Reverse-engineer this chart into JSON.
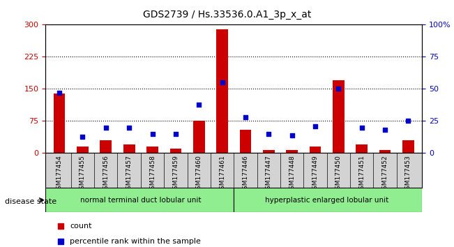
{
  "title": "GDS2739 / Hs.33536.0.A1_3p_x_at",
  "samples": [
    "GSM177454",
    "GSM177455",
    "GSM177456",
    "GSM177457",
    "GSM177458",
    "GSM177459",
    "GSM177460",
    "GSM177461",
    "GSM177446",
    "GSM177447",
    "GSM177448",
    "GSM177449",
    "GSM177450",
    "GSM177451",
    "GSM177452",
    "GSM177453"
  ],
  "counts": [
    140,
    15,
    30,
    20,
    15,
    10,
    75,
    290,
    55,
    8,
    8,
    15,
    170,
    20,
    8,
    30
  ],
  "percentiles": [
    47,
    13,
    20,
    20,
    15,
    15,
    38,
    55,
    28,
    15,
    14,
    21,
    50,
    20,
    18,
    25
  ],
  "group1_label": "normal terminal duct lobular unit",
  "group2_label": "hyperplastic enlarged lobular unit",
  "group1_count": 8,
  "group2_count": 8,
  "bar_color": "#cc0000",
  "dot_color": "#0000cc",
  "ylim_left": [
    0,
    300
  ],
  "ylim_right": [
    0,
    100
  ],
  "yticks_left": [
    0,
    75,
    150,
    225,
    300
  ],
  "yticks_right": [
    0,
    25,
    50,
    75,
    100
  ],
  "yticklabels_right": [
    "0",
    "25",
    "50",
    "75",
    "100%"
  ],
  "group1_color": "#90ee90",
  "group2_color": "#90ee90",
  "bg_color": "#d3d3d3",
  "legend_count_label": "count",
  "legend_pct_label": "percentile rank within the sample",
  "disease_state_label": "disease state"
}
